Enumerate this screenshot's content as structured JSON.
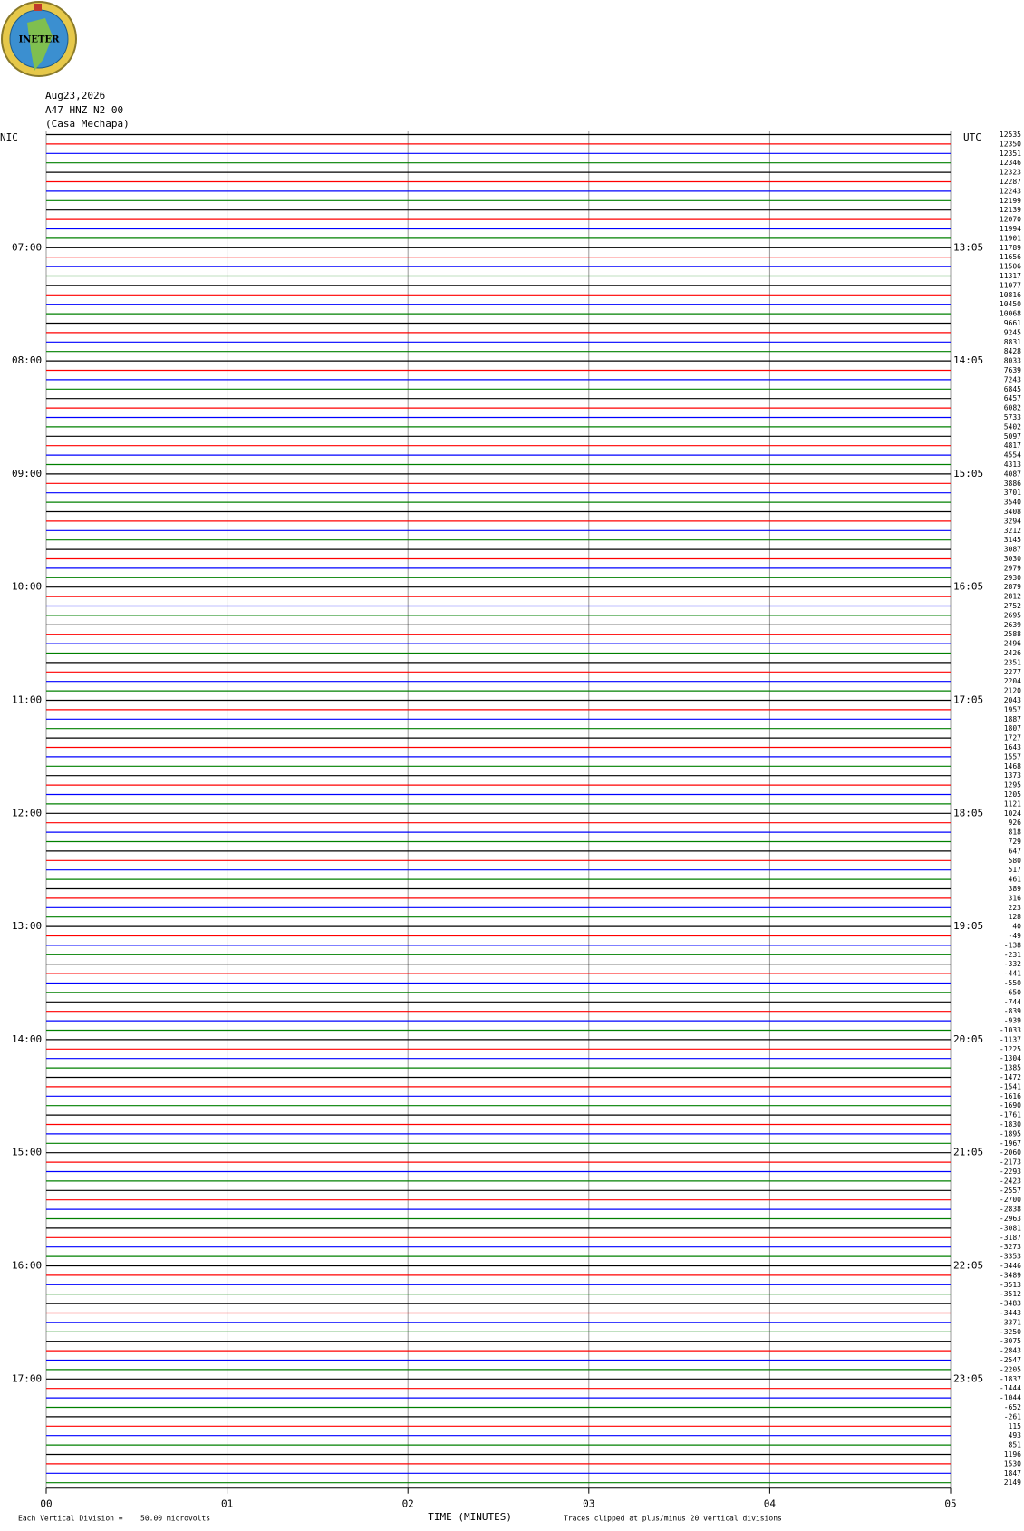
{
  "logo_text": "INETER",
  "chart_data": {
    "type": "helicorder",
    "date": "Aug23,2026",
    "channel": "A47 HNZ N2 00",
    "station": "(Casa Mechapa)",
    "left_zone": "NIC",
    "right_zone": "UTC",
    "x_label": "TIME (MINUTES)",
    "scale_label": "Each Vertical Division =",
    "scale_value": "50.00 microvolts",
    "clip_note": "Traces clipped at plus/minus 20 vertical divisions",
    "xlim": [
      0,
      5
    ],
    "xticks": [
      {
        "value": 0,
        "label": "00"
      },
      {
        "value": 1,
        "label": "01"
      },
      {
        "value": 2,
        "label": "02"
      },
      {
        "value": 3,
        "label": "03"
      },
      {
        "value": 4,
        "label": "04"
      },
      {
        "value": 5,
        "label": "05"
      }
    ],
    "grid": true,
    "colors": [
      "#000000",
      "#ff0000",
      "#0000ff",
      "#008000"
    ],
    "left_hours": [
      "07:00",
      "08:00",
      "09:00",
      "10:00",
      "11:00",
      "12:00",
      "13:00",
      "14:00",
      "15:00",
      "16:00",
      "17:00"
    ],
    "right_hours": [
      "13:05",
      "14:05",
      "15:05",
      "16:05",
      "17:05",
      "18:05",
      "19:05",
      "20:05",
      "21:05",
      "22:05",
      "23:05"
    ],
    "offsets": [
      12535,
      12350,
      12351,
      12346,
      12323,
      12287,
      12243,
      12199,
      12139,
      12070,
      11994,
      11901,
      11789,
      11656,
      11506,
      11317,
      11077,
      10816,
      10450,
      10068,
      9661,
      9245,
      8831,
      8428,
      8033,
      7639,
      7243,
      6845,
      6457,
      6082,
      5733,
      5402,
      5097,
      4817,
      4554,
      4313,
      4087,
      3886,
      3701,
      3540,
      3408,
      3294,
      3212,
      3145,
      3087,
      3030,
      2979,
      2930,
      2879,
      2812,
      2752,
      2695,
      2639,
      2588,
      2496,
      2426,
      2351,
      2277,
      2204,
      2120,
      2043,
      1957,
      1887,
      1807,
      1727,
      1643,
      1557,
      1468,
      1373,
      1295,
      1205,
      1121,
      1024,
      926,
      818,
      729,
      647,
      580,
      517,
      461,
      389,
      316,
      223,
      128,
      40,
      -49,
      -138,
      -231,
      -332,
      -441,
      -550,
      -650,
      -744,
      -839,
      -939,
      -1033,
      -1137,
      -1225,
      -1304,
      -1385,
      -1472,
      -1541,
      -1616,
      -1690,
      -1761,
      -1830,
      -1895,
      -1967,
      -2060,
      -2173,
      -2293,
      -2423,
      -2557,
      -2700,
      -2838,
      -2963,
      -3081,
      -3187,
      -3273,
      -3353,
      -3446,
      -3489,
      -3513,
      -3512,
      -3483,
      -3443,
      -3371,
      -3250,
      -3075,
      -2843,
      -2547,
      -2205,
      -1837,
      -1444,
      -1044,
      -652,
      -261,
      115,
      493,
      851,
      1196,
      1530,
      1847,
      2149
    ]
  }
}
